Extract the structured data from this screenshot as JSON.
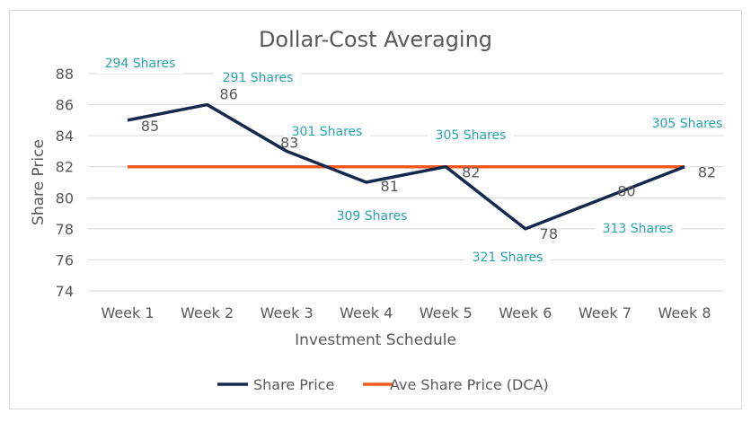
{
  "chart_data": {
    "type": "line",
    "title": "Dollar-Cost Averaging",
    "xlabel": "Investment Schedule",
    "ylabel": "Share Price",
    "categories": [
      "Week 1",
      "Week 2",
      "Week 3",
      "Week 4",
      "Week 5",
      "Week 6",
      "Week 7",
      "Week 8"
    ],
    "ylim": [
      74,
      88
    ],
    "yticks": [
      74,
      76,
      78,
      80,
      82,
      84,
      86,
      88
    ],
    "grid": true,
    "legend_position": "bottom",
    "series": [
      {
        "name": "Share Price",
        "color": "#15294f",
        "values": [
          85,
          86,
          83,
          81,
          82,
          78,
          80,
          82
        ],
        "data_labels": true
      },
      {
        "name": "Ave Share Price (DCA)",
        "color": "#f15a1f",
        "values": [
          82,
          82,
          82,
          82,
          82,
          82,
          82,
          82
        ]
      }
    ],
    "annotations": [
      "294 Shares",
      "291 Shares",
      "301 Shares",
      "309 Shares",
      "305 Shares",
      "321 Shares",
      "313 Shares",
      "305 Shares"
    ],
    "annotation_color": "#26a3b0"
  }
}
